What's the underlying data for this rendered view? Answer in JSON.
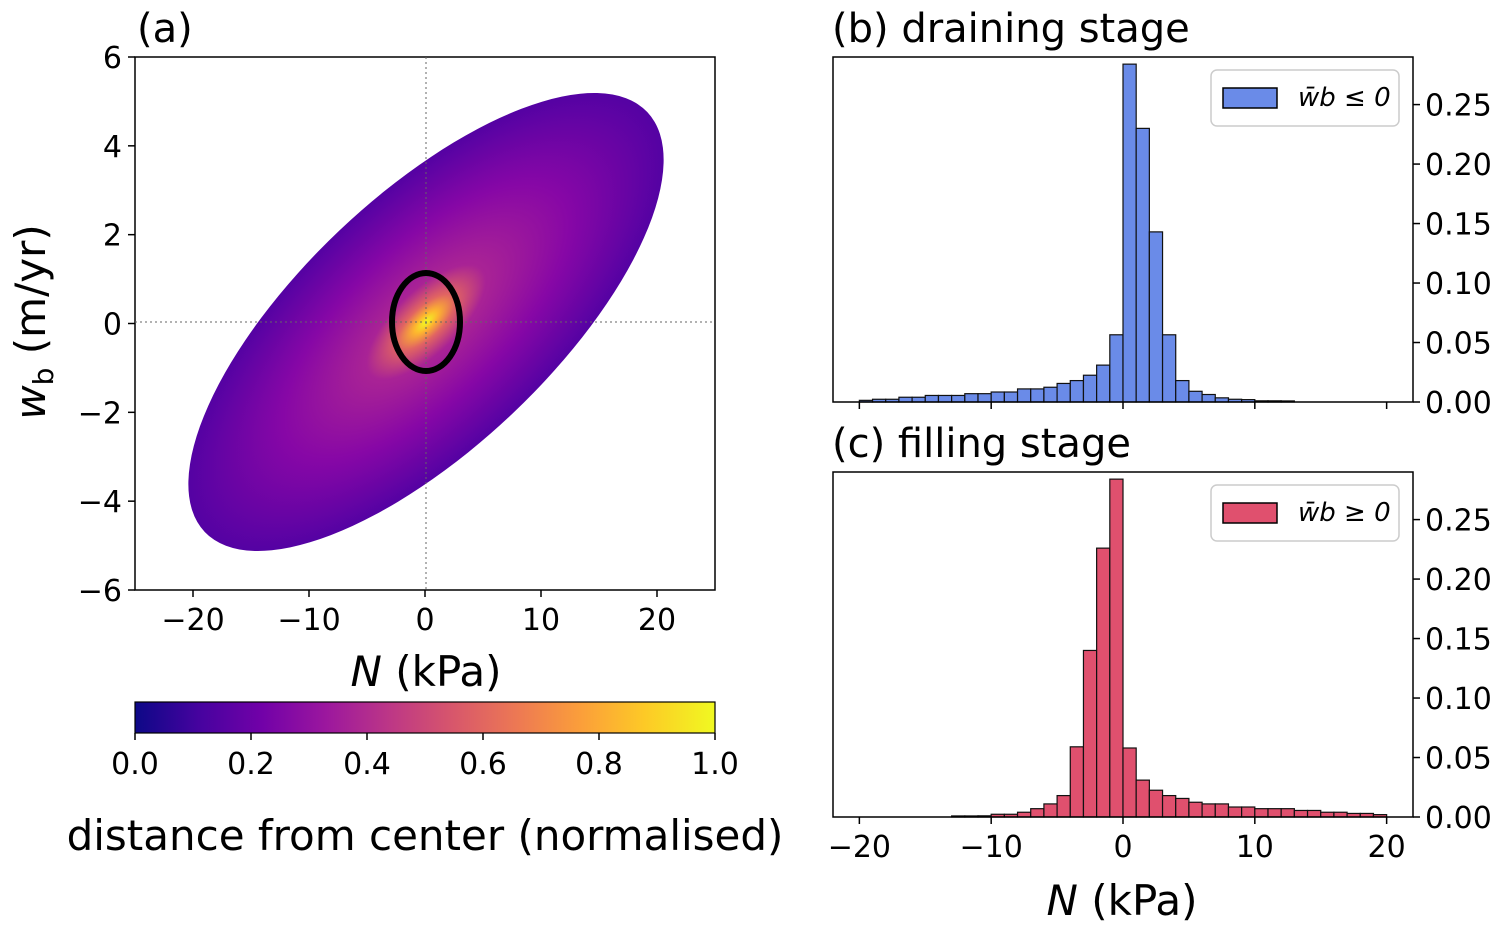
{
  "chart_data": [
    {
      "type": "heatmap",
      "panel_label": "(a)",
      "xlabel_var": "N",
      "xlabel_unit": "(kPa)",
      "ylabel_var": "w",
      "ylabel_sub": "b",
      "ylabel_unit": "(m/yr)",
      "xlim": [
        -25,
        25
      ],
      "ylim": [
        -6,
        6
      ],
      "xticks": [
        "−20",
        "−10",
        "0",
        "10",
        "20"
      ],
      "xtick_values": [
        -20,
        -10,
        0,
        10,
        20
      ],
      "yticks": [
        "6",
        "4",
        "2",
        "0",
        "−2",
        "−4",
        "−6"
      ],
      "ytick_values": [
        6,
        4,
        2,
        0,
        -2,
        -4,
        -6
      ],
      "colormap": "plasma",
      "colorbar": {
        "label": "distance from center (normalised)",
        "ticks": [
          "0.0",
          "0.2",
          "0.4",
          "0.6",
          "0.8",
          "1.0"
        ],
        "range": [
          0,
          1
        ]
      },
      "reference_lines": {
        "x": 0,
        "y": 0,
        "style": "dotted"
      },
      "highlight_ellipse": {
        "center": [
          0,
          0
        ],
        "n_halfwidth": 3,
        "w_halfheight": 1.1,
        "color": "#000000"
      }
    },
    {
      "type": "bar",
      "title": "(b) draining stage",
      "legend": "w̄b ≤ 0",
      "legend_position": "upper-right",
      "color": "#6a8be8",
      "bin_edges_start": -20,
      "bin_width": 1,
      "xlim": [
        -22,
        22
      ],
      "ylim": [
        0,
        0.29
      ],
      "xtick_values": [
        -20,
        -10,
        0,
        10,
        20
      ],
      "yticks": [
        "0.00",
        "0.05",
        "0.10",
        "0.15",
        "0.20",
        "0.25"
      ],
      "ytick_values": [
        0,
        0.05,
        0.1,
        0.15,
        0.2,
        0.25
      ],
      "y_axis_side": "right",
      "values": [
        0.0014,
        0.0023,
        0.0023,
        0.004,
        0.004,
        0.0055,
        0.0055,
        0.0055,
        0.007,
        0.007,
        0.0084,
        0.0084,
        0.011,
        0.011,
        0.0124,
        0.0156,
        0.018,
        0.0225,
        0.031,
        0.0565,
        0.284,
        0.23,
        0.143,
        0.0565,
        0.018,
        0.009,
        0.0063,
        0.0035,
        0.0023,
        0.002,
        0.001,
        0.001,
        0.0009,
        0,
        0,
        0,
        0,
        0,
        0,
        0
      ]
    },
    {
      "type": "bar",
      "title": "(c) filling stage",
      "legend": "w̄b ≥ 0",
      "legend_position": "upper-right",
      "color": "#e0506e",
      "bin_edges_start": -20,
      "bin_width": 1,
      "xlim": [
        -22,
        22
      ],
      "ylim": [
        0,
        0.29
      ],
      "xlabel_var": "N",
      "xlabel_unit": "(kPa)",
      "xticks": [
        "−20",
        "−10",
        "0",
        "10",
        "20"
      ],
      "xtick_values": [
        -20,
        -10,
        0,
        10,
        20
      ],
      "yticks": [
        "0.00",
        "0.05",
        "0.10",
        "0.15",
        "0.20",
        "0.25"
      ],
      "ytick_values": [
        0,
        0.05,
        0.1,
        0.15,
        0.2,
        0.25
      ],
      "y_axis_side": "right",
      "values": [
        0,
        0,
        0,
        0,
        0,
        0,
        0,
        0.0009,
        0.0009,
        0.001,
        0.0023,
        0.0023,
        0.004,
        0.007,
        0.011,
        0.018,
        0.059,
        0.14,
        0.226,
        0.284,
        0.058,
        0.031,
        0.0225,
        0.018,
        0.0156,
        0.0124,
        0.011,
        0.011,
        0.0084,
        0.0084,
        0.007,
        0.007,
        0.007,
        0.0055,
        0.0055,
        0.004,
        0.004,
        0.003,
        0.003,
        0.002
      ]
    }
  ]
}
